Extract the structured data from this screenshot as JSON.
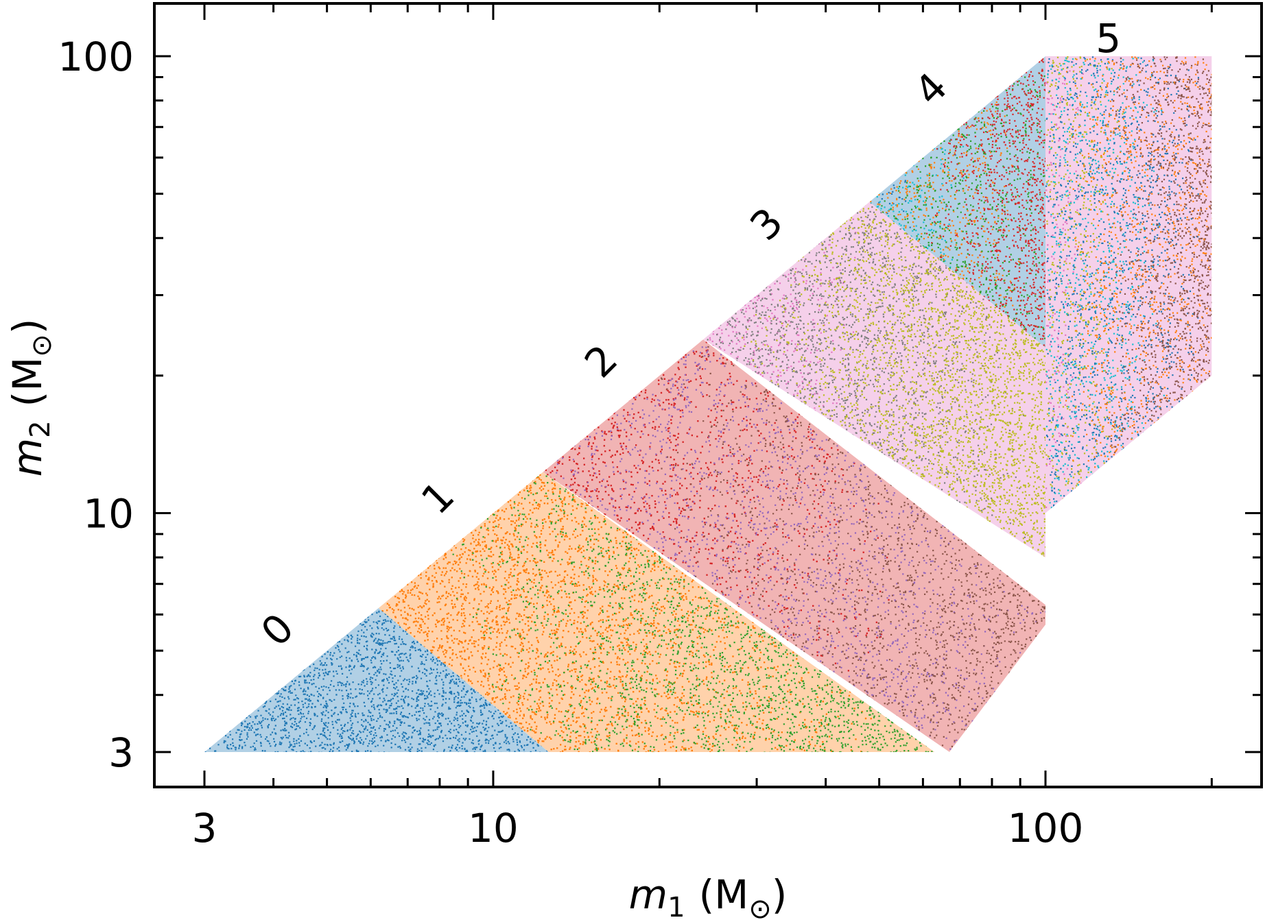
{
  "chart_data": {
    "type": "scatter",
    "title": "",
    "xlabel": {
      "symbol": "m",
      "subscript": "1",
      "unit": "(M",
      "sun": "⊙",
      "close": ")"
    },
    "ylabel": {
      "symbol": "m",
      "subscript": "2",
      "unit": "(M",
      "sun": "⊙",
      "close": ")"
    },
    "xscale": "log",
    "yscale": "log",
    "xlim": [
      2.5,
      250
    ],
    "ylim": [
      2.2,
      130
    ],
    "xticks": [
      3,
      10,
      100
    ],
    "xtick_labels": [
      "3",
      "10",
      "100"
    ],
    "yticks": [
      3,
      10,
      100
    ],
    "ytick_labels": [
      "3",
      "10",
      "100"
    ],
    "grid": false,
    "legend": "none",
    "colors": [
      "#1f77b4",
      "#ff7f0e",
      "#2ca02c",
      "#d62728",
      "#9467bd",
      "#8c564b",
      "#e377c2",
      "#7f7f7f",
      "#bcbd22",
      "#17becf"
    ],
    "regions": [
      {
        "label": "0",
        "m1_min": 3,
        "m1_max": 12.6,
        "polygon": [
          [
            3,
            3
          ],
          [
            6.2,
            6.2
          ],
          [
            12.6,
            3
          ]
        ],
        "mix": [
          "#1f77b4"
        ]
      },
      {
        "label": "1",
        "m1_min": 6.2,
        "m1_max": 63,
        "polygon": [
          [
            6.2,
            6.2
          ],
          [
            12.3,
            12.3
          ],
          [
            63,
            3
          ],
          [
            12.6,
            3
          ]
        ],
        "mix": [
          "#ff7f0e",
          "#ff7f0e",
          "#2ca02c"
        ]
      },
      {
        "label": "2",
        "m1_min": 12.3,
        "m1_max": 100,
        "polygon": [
          [
            12.3,
            12.3
          ],
          [
            24,
            24
          ],
          [
            100,
            6.3
          ],
          [
            100,
            5.7
          ],
          [
            67,
            3
          ]
        ],
        "mix": [
          "#d62728",
          "#d62728",
          "#9467bd",
          "#8c564b"
        ]
      },
      {
        "label": "3",
        "m1_min": 24,
        "m1_max": 100,
        "polygon": [
          [
            24,
            24
          ],
          [
            48,
            48
          ],
          [
            100,
            23
          ],
          [
            100,
            8
          ],
          [
            24,
            24
          ]
        ],
        "mix": [
          "#e377c2",
          "#7f7f7f",
          "#bcbd22"
        ]
      },
      {
        "label": "4",
        "m1_min": 48,
        "m1_max": 100,
        "polygon": [
          [
            48,
            48
          ],
          [
            100,
            100
          ],
          [
            100,
            23
          ]
        ],
        "mix": [
          "#1f77b4",
          "#17becf",
          "#ff7f0e",
          "#2ca02c",
          "#d62728"
        ]
      },
      {
        "label": "5",
        "m1_min": 100,
        "m1_max": 200,
        "polygon": [
          [
            100,
            100
          ],
          [
            200,
            100
          ],
          [
            200,
            20
          ],
          [
            100,
            10
          ]
        ],
        "mix": [
          "#e377c2",
          "#bcbd22",
          "#17becf",
          "#1f77b4",
          "#ff7f0e",
          "#8c564b"
        ]
      }
    ],
    "region_labels": [
      {
        "text": "0",
        "m1": 4.1,
        "m2": 5.5,
        "rotate": -45
      },
      {
        "text": "1",
        "m1": 8.0,
        "m2": 10.7,
        "rotate": -45
      },
      {
        "text": "2",
        "m1": 15.8,
        "m2": 21.3,
        "rotate": -45
      },
      {
        "text": "3",
        "m1": 31.5,
        "m2": 42.5,
        "rotate": -45
      },
      {
        "text": "4",
        "m1": 62.5,
        "m2": 84,
        "rotate": -45
      },
      {
        "text": "5",
        "m1": 130,
        "m2": 108,
        "rotate": 0
      }
    ]
  }
}
